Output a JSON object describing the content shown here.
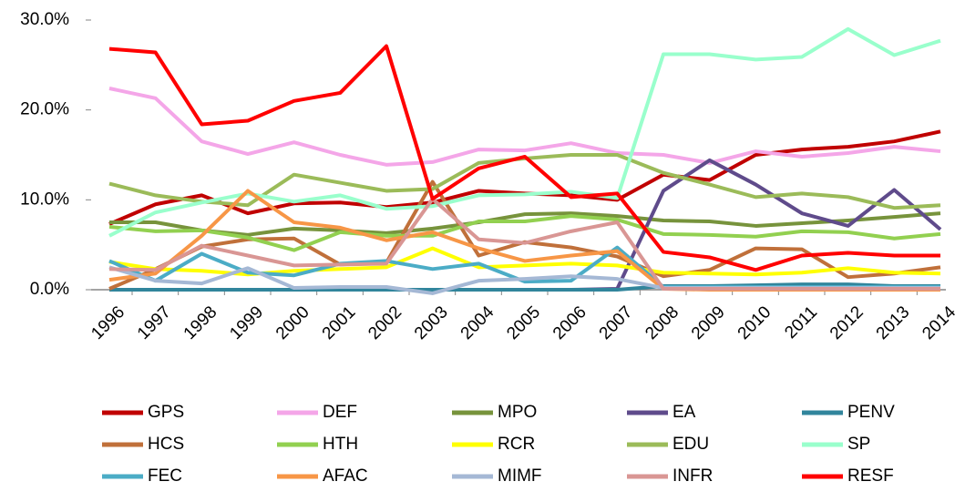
{
  "chart_data": {
    "type": "line",
    "categories": [
      "1996",
      "1997",
      "1998",
      "1999",
      "2000",
      "2001",
      "2002",
      "2003",
      "2004",
      "2005",
      "2006",
      "2007",
      "2008",
      "2009",
      "2010",
      "2011",
      "2012",
      "2013",
      "2014"
    ],
    "ylim": [
      0,
      30
    ],
    "yticks": [
      {
        "value": 0,
        "label": "0.0%"
      },
      {
        "value": 10,
        "label": "10.0%"
      },
      {
        "value": 20,
        "label": "20.0%"
      },
      {
        "value": 30,
        "label": "30.0%"
      }
    ],
    "legend": "bottom",
    "series": [
      {
        "name": "GPS",
        "color": "#C00000",
        "values": [
          7.3,
          9.5,
          10.5,
          8.5,
          9.6,
          9.7,
          9.2,
          9.7,
          11.0,
          10.7,
          10.5,
          10.0,
          12.8,
          12.2,
          15.0,
          15.6,
          15.9,
          16.5,
          17.6
        ]
      },
      {
        "name": "DEF",
        "color": "#F4A6E8",
        "values": [
          22.4,
          21.3,
          16.5,
          15.1,
          16.4,
          15.0,
          13.9,
          14.2,
          15.6,
          15.5,
          16.3,
          15.2,
          15.0,
          14.1,
          15.4,
          14.8,
          15.2,
          15.9,
          15.4
        ]
      },
      {
        "name": "MPO",
        "color": "#77933C",
        "values": [
          7.5,
          7.5,
          6.6,
          6.1,
          6.8,
          6.6,
          6.3,
          6.8,
          7.5,
          8.4,
          8.5,
          8.2,
          7.7,
          7.6,
          7.1,
          7.4,
          7.7,
          8.1,
          8.5
        ]
      },
      {
        "name": "EA",
        "color": "#5F4B8B",
        "values": [
          0,
          0,
          0,
          0,
          0,
          0,
          0,
          0,
          0,
          0,
          0,
          0.1,
          11.0,
          14.4,
          11.7,
          8.5,
          7.1,
          11.1,
          6.7
        ]
      },
      {
        "name": "PENV",
        "color": "#31859C",
        "values": [
          0,
          0,
          0,
          0,
          0,
          0,
          0,
          0,
          0,
          0,
          0,
          0,
          0.4,
          0.4,
          0.5,
          0.6,
          0.6,
          0.4,
          0.4
        ]
      },
      {
        "name": "HCS",
        "color": "#C0703A",
        "values": [
          0.1,
          2.3,
          4.8,
          5.6,
          5.7,
          2.8,
          3.0,
          12.0,
          3.8,
          5.3,
          4.7,
          3.7,
          1.5,
          2.2,
          4.6,
          4.5,
          1.4,
          1.8,
          2.5
        ]
      },
      {
        "name": "HTH",
        "color": "#92D050",
        "values": [
          7.0,
          6.5,
          6.6,
          5.8,
          4.4,
          6.4,
          6.0,
          6.0,
          7.6,
          7.6,
          8.2,
          7.8,
          6.2,
          6.1,
          5.9,
          6.5,
          6.4,
          5.7,
          6.2
        ]
      },
      {
        "name": "RCR",
        "color": "#FFFF00",
        "values": [
          3.1,
          2.3,
          2.1,
          1.7,
          2.1,
          2.3,
          2.5,
          4.6,
          2.5,
          2.7,
          2.9,
          2.7,
          1.9,
          1.8,
          1.7,
          1.9,
          2.4,
          1.9,
          1.8
        ]
      },
      {
        "name": "EDU",
        "color": "#9BBB59",
        "values": [
          11.8,
          10.5,
          9.8,
          9.4,
          12.8,
          11.9,
          11.0,
          11.2,
          14.1,
          14.6,
          15.0,
          15.0,
          13.0,
          11.7,
          10.3,
          10.7,
          10.3,
          9.1,
          9.4
        ]
      },
      {
        "name": "SP",
        "color": "#99FFCC",
        "values": [
          6.0,
          8.6,
          9.7,
          10.7,
          9.8,
          10.5,
          9.0,
          9.3,
          10.5,
          10.6,
          10.9,
          10.2,
          26.2,
          26.2,
          25.6,
          25.9,
          29.0,
          26.1,
          27.7
        ]
      },
      {
        "name": "FEC",
        "color": "#4BACC6",
        "values": [
          3.2,
          1.0,
          4.0,
          1.9,
          1.6,
          2.9,
          3.2,
          2.3,
          2.9,
          0.9,
          1.0,
          4.7,
          0.3,
          0.3,
          0.3,
          0.3,
          0.3,
          0.3,
          0.3
        ]
      },
      {
        "name": "AFAC",
        "color": "#F79646",
        "values": [
          1.1,
          1.8,
          6.0,
          11.0,
          7.5,
          6.9,
          5.5,
          6.4,
          4.6,
          3.2,
          3.8,
          4.3,
          0.1,
          0,
          0,
          0,
          0,
          0,
          0
        ]
      },
      {
        "name": "MIMF",
        "color": "#A5B8D5",
        "values": [
          2.5,
          1.0,
          0.7,
          2.4,
          0.2,
          0.3,
          0.3,
          -0.4,
          1.0,
          1.2,
          1.5,
          1.2,
          0.2,
          0.2,
          0.2,
          0.2,
          0.2,
          0.2,
          0.2
        ]
      },
      {
        "name": "INFR",
        "color": "#D99694",
        "values": [
          2.3,
          2.2,
          4.9,
          3.8,
          2.7,
          2.8,
          2.9,
          10.1,
          5.6,
          5.2,
          6.5,
          7.5,
          0.1,
          0.1,
          0.1,
          0.1,
          0.1,
          0.1,
          0.1
        ]
      },
      {
        "name": "RESF",
        "color": "#FF0000",
        "values": [
          26.8,
          26.4,
          18.4,
          18.8,
          21.0,
          21.9,
          27.1,
          10.1,
          13.5,
          14.8,
          10.3,
          10.7,
          4.2,
          3.6,
          2.2,
          3.8,
          4.1,
          3.8,
          3.8
        ]
      }
    ]
  }
}
